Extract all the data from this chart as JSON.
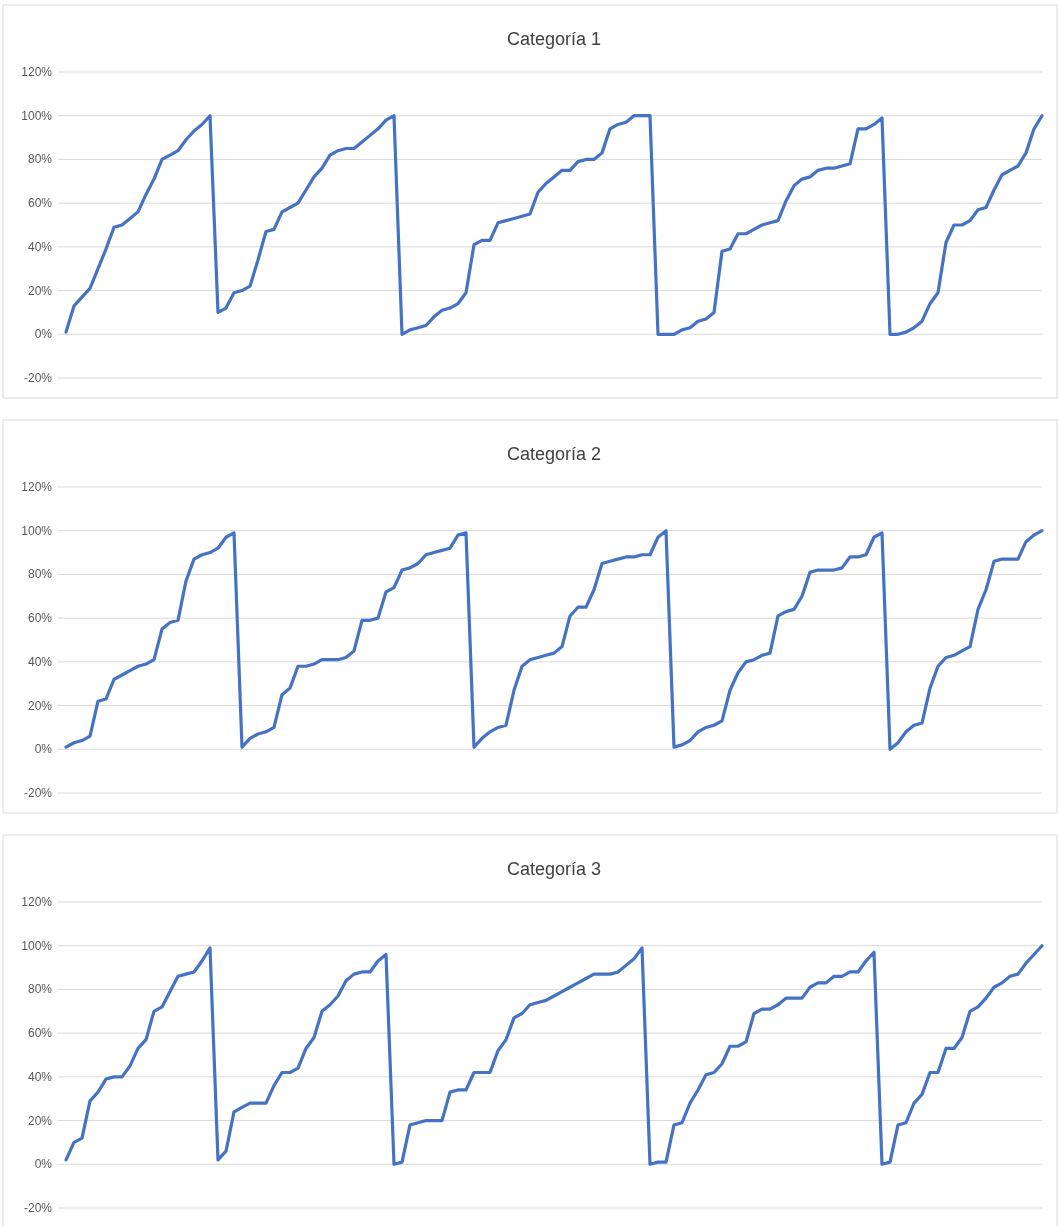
{
  "chart_data": [
    {
      "type": "line",
      "title": "Categoría 1",
      "categories": [
        null,
        null,
        null,
        null,
        null,
        null,
        null,
        null,
        null,
        null,
        null,
        null,
        null,
        null,
        null,
        null,
        null,
        null,
        null,
        null,
        null,
        null,
        null,
        null,
        null,
        null,
        null,
        null,
        null,
        null,
        null,
        null,
        null,
        null,
        null,
        null,
        null,
        null,
        null,
        null,
        null,
        null,
        null,
        null,
        null,
        null,
        null,
        null,
        null,
        null,
        null,
        null,
        null,
        null,
        null,
        null,
        null,
        null,
        null,
        null,
        null,
        null,
        null,
        null,
        null,
        null,
        null,
        null,
        null,
        null,
        null,
        null,
        null,
        null,
        null,
        null,
        null,
        null,
        null,
        null,
        null,
        null,
        null,
        null,
        null,
        null,
        null,
        null,
        null,
        null,
        null,
        null,
        null,
        null,
        null,
        null,
        null,
        null,
        null,
        null,
        null,
        null,
        null,
        null,
        null,
        null,
        null,
        null,
        null,
        null,
        null,
        null,
        null,
        null,
        null,
        null,
        null,
        null,
        null,
        null,
        null,
        null,
        null
      ],
      "series": [
        {
          "color": "#4472c4",
          "values": [
            1,
            13,
            17,
            21,
            30,
            39,
            49,
            50,
            53,
            56,
            64,
            71,
            80,
            82,
            84,
            89,
            93,
            96,
            100,
            10,
            12,
            19,
            20,
            22,
            34,
            47,
            48,
            56,
            58,
            60,
            66,
            72,
            76,
            82,
            84,
            85,
            85,
            88,
            91,
            94,
            98,
            100,
            0,
            2,
            3,
            4,
            8,
            11,
            12,
            14,
            19,
            41,
            43,
            43,
            51,
            52,
            53,
            54,
            55,
            65,
            69,
            72,
            75,
            75,
            79,
            80,
            80,
            83,
            94,
            96,
            97,
            100,
            100,
            100,
            0,
            0,
            0,
            2,
            3,
            6,
            7,
            10,
            38,
            39,
            46,
            46,
            48,
            50,
            51,
            52,
            61,
            68,
            71,
            72,
            75,
            76,
            76,
            77,
            78,
            94,
            94,
            96,
            99,
            0,
            0,
            1,
            3,
            6,
            14,
            19,
            42,
            50,
            50,
            52,
            57,
            58,
            66,
            73,
            75,
            77,
            83,
            94,
            100
          ]
        }
      ],
      "ylim": [
        -20,
        120
      ],
      "yticks": [
        {
          "value": -20,
          "label": "-20%"
        },
        {
          "value": 0,
          "label": "0%"
        },
        {
          "value": 20,
          "label": "20%"
        },
        {
          "value": 40,
          "label": "40%"
        },
        {
          "value": 60,
          "label": "60%"
        },
        {
          "value": 80,
          "label": "80%"
        },
        {
          "value": 100,
          "label": "100%"
        },
        {
          "value": 120,
          "label": "120%"
        }
      ],
      "grid": "y"
    },
    {
      "type": "line",
      "title": "Categoría 2",
      "categories": [
        null,
        null,
        null,
        null,
        null,
        null,
        null,
        null,
        null,
        null,
        null,
        null,
        null,
        null,
        null,
        null,
        null,
        null,
        null,
        null,
        null,
        null,
        null,
        null,
        null,
        null,
        null,
        null,
        null,
        null,
        null,
        null,
        null,
        null,
        null,
        null,
        null,
        null,
        null,
        null,
        null,
        null,
        null,
        null,
        null,
        null,
        null,
        null,
        null,
        null,
        null,
        null,
        null,
        null,
        null,
        null,
        null,
        null,
        null,
        null,
        null,
        null,
        null,
        null,
        null,
        null,
        null,
        null,
        null,
        null,
        null,
        null,
        null,
        null,
        null,
        null,
        null,
        null,
        null,
        null,
        null,
        null,
        null,
        null,
        null,
        null,
        null,
        null,
        null,
        null,
        null,
        null,
        null,
        null,
        null,
        null,
        null,
        null,
        null,
        null,
        null,
        null,
        null,
        null,
        null,
        null,
        null,
        null,
        null,
        null,
        null,
        null,
        null,
        null,
        null,
        null,
        null,
        null,
        null,
        null,
        null,
        null,
        null
      ],
      "series": [
        {
          "color": "#4472c4",
          "values": [
            1,
            3,
            4,
            6,
            22,
            23,
            32,
            34,
            36,
            38,
            39,
            41,
            55,
            58,
            59,
            77,
            87,
            89,
            90,
            92,
            97,
            99,
            1,
            5,
            7,
            8,
            10,
            25,
            28,
            38,
            38,
            39,
            41,
            41,
            41,
            42,
            45,
            59,
            59,
            60,
            72,
            74,
            82,
            83,
            85,
            89,
            90,
            91,
            92,
            98,
            99,
            1,
            5,
            8,
            10,
            11,
            27,
            38,
            41,
            42,
            43,
            44,
            47,
            61,
            65,
            65,
            73,
            85,
            86,
            87,
            88,
            88,
            89,
            89,
            97,
            100,
            1,
            2,
            4,
            8,
            10,
            11,
            13,
            27,
            35,
            40,
            41,
            43,
            44,
            61,
            63,
            64,
            70,
            81,
            82,
            82,
            82,
            83,
            88,
            88,
            89,
            97,
            99,
            0,
            3,
            8,
            11,
            12,
            28,
            38,
            42,
            43,
            45,
            47,
            64,
            73,
            86,
            87,
            87,
            87,
            95,
            98,
            100
          ]
        }
      ],
      "ylim": [
        -20,
        120
      ],
      "yticks": [
        {
          "value": -20,
          "label": "-20%"
        },
        {
          "value": 0,
          "label": "0%"
        },
        {
          "value": 20,
          "label": "20%"
        },
        {
          "value": 40,
          "label": "40%"
        },
        {
          "value": 60,
          "label": "60%"
        },
        {
          "value": 80,
          "label": "80%"
        },
        {
          "value": 100,
          "label": "100%"
        },
        {
          "value": 120,
          "label": "120%"
        }
      ],
      "grid": "y"
    },
    {
      "type": "line",
      "title": "Categoría 3",
      "categories": [
        null,
        null,
        null,
        null,
        null,
        null,
        null,
        null,
        null,
        null,
        null,
        null,
        null,
        null,
        null,
        null,
        null,
        null,
        null,
        null,
        null,
        null,
        null,
        null,
        null,
        null,
        null,
        null,
        null,
        null,
        null,
        null,
        null,
        null,
        null,
        null,
        null,
        null,
        null,
        null,
        null,
        null,
        null,
        null,
        null,
        null,
        null,
        null,
        null,
        null,
        null,
        null,
        null,
        null,
        null,
        null,
        null,
        null,
        null,
        null,
        null,
        null,
        null,
        null,
        null,
        null,
        null,
        null,
        null,
        null,
        null,
        null,
        null,
        null,
        null,
        null,
        null,
        null,
        null,
        null,
        null,
        null,
        null,
        null,
        null,
        null,
        null,
        null,
        null,
        null,
        null,
        null,
        null,
        null,
        null,
        null,
        null,
        null,
        null,
        null,
        null,
        null,
        null,
        null,
        null,
        null,
        null,
        null,
        null,
        null,
        null,
        null,
        null,
        null,
        null,
        null,
        null,
        null,
        null,
        null,
        null,
        null,
        null
      ],
      "series": [
        {
          "color": "#4472c4",
          "values": [
            2,
            10,
            12,
            29,
            33,
            39,
            40,
            40,
            45,
            53,
            57,
            70,
            72,
            79,
            86,
            87,
            88,
            93,
            99,
            2,
            6,
            24,
            26,
            28,
            28,
            28,
            36,
            42,
            42,
            44,
            53,
            58,
            70,
            73,
            77,
            84,
            87,
            88,
            88,
            93,
            96,
            0,
            1,
            18,
            19,
            20,
            20,
            20,
            33,
            34,
            34,
            42,
            42,
            42,
            52,
            57,
            67,
            69,
            73,
            74,
            75,
            77,
            79,
            81,
            83,
            85,
            87,
            87,
            87,
            88,
            91,
            94,
            99,
            0,
            1,
            1,
            18,
            19,
            28,
            34,
            41,
            42,
            46,
            54,
            54,
            56,
            69,
            71,
            71,
            73,
            76,
            76,
            76,
            81,
            83,
            83,
            86,
            86,
            88,
            88,
            93,
            97,
            0,
            1,
            18,
            19,
            28,
            32,
            42,
            42,
            53,
            53,
            58,
            70,
            72,
            76,
            81,
            83,
            86,
            87,
            92,
            96,
            100
          ]
        }
      ],
      "ylim": [
        -20,
        120
      ],
      "yticks": [
        {
          "value": -20,
          "label": "-20%"
        },
        {
          "value": 0,
          "label": "0%"
        },
        {
          "value": 20,
          "label": "20%"
        },
        {
          "value": 40,
          "label": "40%"
        },
        {
          "value": 60,
          "label": "60%"
        },
        {
          "value": 80,
          "label": "80%"
        },
        {
          "value": 100,
          "label": "100%"
        },
        {
          "value": 120,
          "label": "120%"
        }
      ],
      "grid": "y"
    }
  ]
}
